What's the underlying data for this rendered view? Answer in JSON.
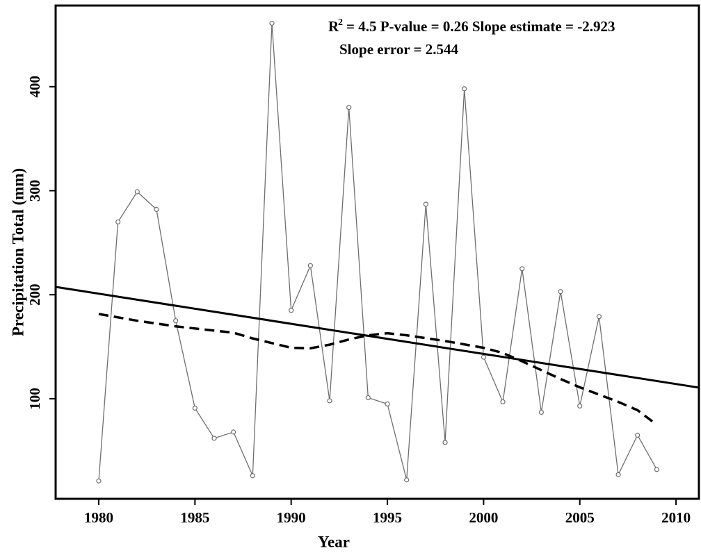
{
  "chart_data": {
    "type": "line",
    "x_label": "Year",
    "y_label": "Precipitation Total (mm)",
    "annotation_r": "R",
    "annotation_sup": "2",
    "annotation_line1": "= 4.5 P-value = 0.26 Slope estimate = -2.923",
    "annotation_line2": "Slope error = 2.544",
    "xlim": [
      1977.76,
      2011.19
    ],
    "ylim": [
      3.8,
      478
    ],
    "xticks": [
      1980,
      1985,
      1990,
      1995,
      2000,
      2005,
      2010
    ],
    "yticks": [
      100,
      200,
      300,
      400
    ],
    "series": [
      {
        "color": "#6e6e6e",
        "style": "points",
        "x": [
          1980,
          1981,
          1982,
          1983,
          1984,
          1985,
          1986,
          1987,
          1988,
          1989,
          1990,
          1991,
          1992,
          1993,
          1994,
          1995,
          1996,
          1997,
          1998,
          1999,
          2000,
          2001,
          2002,
          2003,
          2004,
          2005,
          2006,
          2007,
          2008,
          2009
        ],
        "values": [
          21,
          270,
          299,
          282,
          175,
          91,
          62,
          68,
          26,
          461,
          185,
          228,
          98,
          380,
          101,
          95,
          22,
          287,
          58,
          398,
          140,
          97,
          225,
          87,
          203,
          93,
          179,
          27,
          65,
          32
        ]
      },
      {
        "color": "#000000",
        "style": "solid",
        "x": [
          1977.76,
          2011.19
        ],
        "values": [
          207.5,
          110.7
        ]
      },
      {
        "color": "#000000",
        "style": "dashed",
        "x": [
          1980,
          1982,
          1984,
          1986,
          1987,
          1988,
          1990,
          1991,
          1992,
          1993,
          1994,
          1995,
          1996,
          1998,
          2000,
          2001,
          2002,
          2004,
          2005,
          2006,
          2007,
          2008,
          2009
        ],
        "values": [
          181.5,
          175,
          169.6,
          165.5,
          163.5,
          158,
          149,
          148.5,
          152,
          157,
          161,
          163,
          161,
          155.5,
          149,
          144,
          136,
          119,
          111,
          104,
          97,
          89,
          75
        ]
      }
    ]
  }
}
